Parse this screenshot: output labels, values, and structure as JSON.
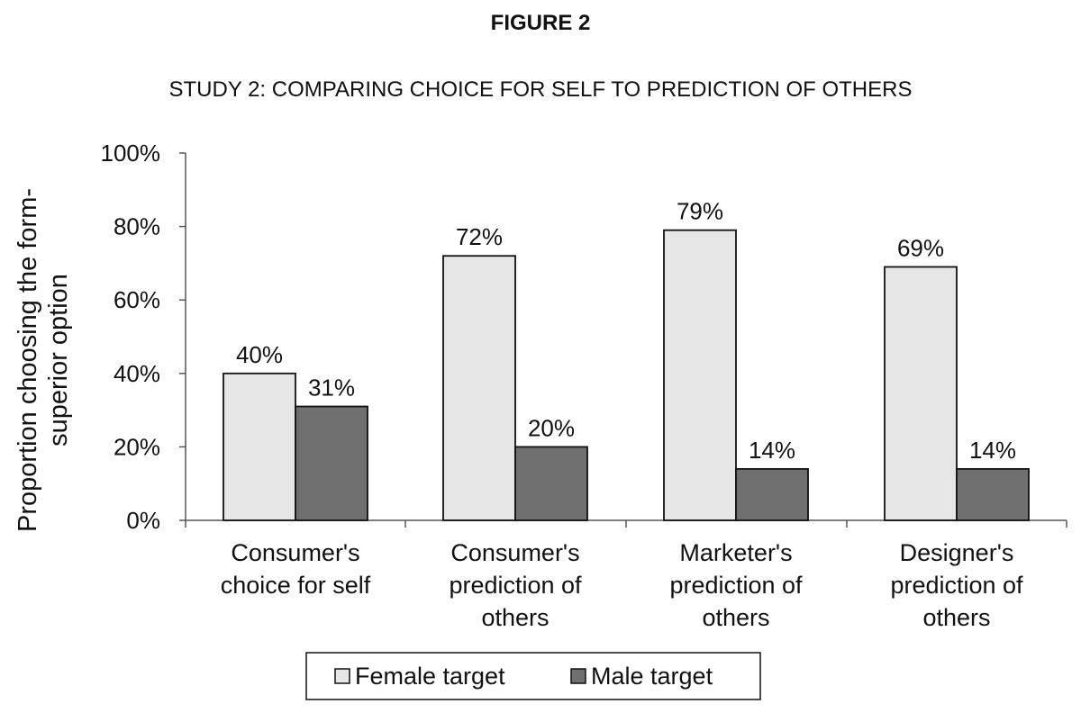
{
  "figure_label": "FIGURE 2",
  "chart_data": {
    "type": "bar",
    "title": "STUDY 2: COMPARING CHOICE FOR SELF TO PREDICTION OF OTHERS",
    "ylabel_lines": [
      "Proportion choosing the form-",
      "superior option"
    ],
    "xlabel": "",
    "ylim": [
      0,
      100
    ],
    "yticks": [
      "0%",
      "20%",
      "40%",
      "60%",
      "80%",
      "100%"
    ],
    "ytick_values": [
      0,
      20,
      40,
      60,
      80,
      100
    ],
    "categories": [
      [
        "Consumer's",
        "choice for self"
      ],
      [
        "Consumer's",
        "prediction of",
        "others"
      ],
      [
        "Marketer's",
        "prediction of",
        "others"
      ],
      [
        "Designer's",
        "prediction of",
        "others"
      ]
    ],
    "series": [
      {
        "name": "Female target",
        "values": [
          40,
          72,
          79,
          69
        ],
        "labels": [
          "40%",
          "72%",
          "79%",
          "69%"
        ],
        "color": "#e6e6e6"
      },
      {
        "name": "Male target",
        "values": [
          31,
          20,
          14,
          14
        ],
        "labels": [
          "31%",
          "20%",
          "14%",
          "14%"
        ],
        "color": "#707070"
      }
    ],
    "grid": false,
    "legend_position": "bottom-center"
  }
}
